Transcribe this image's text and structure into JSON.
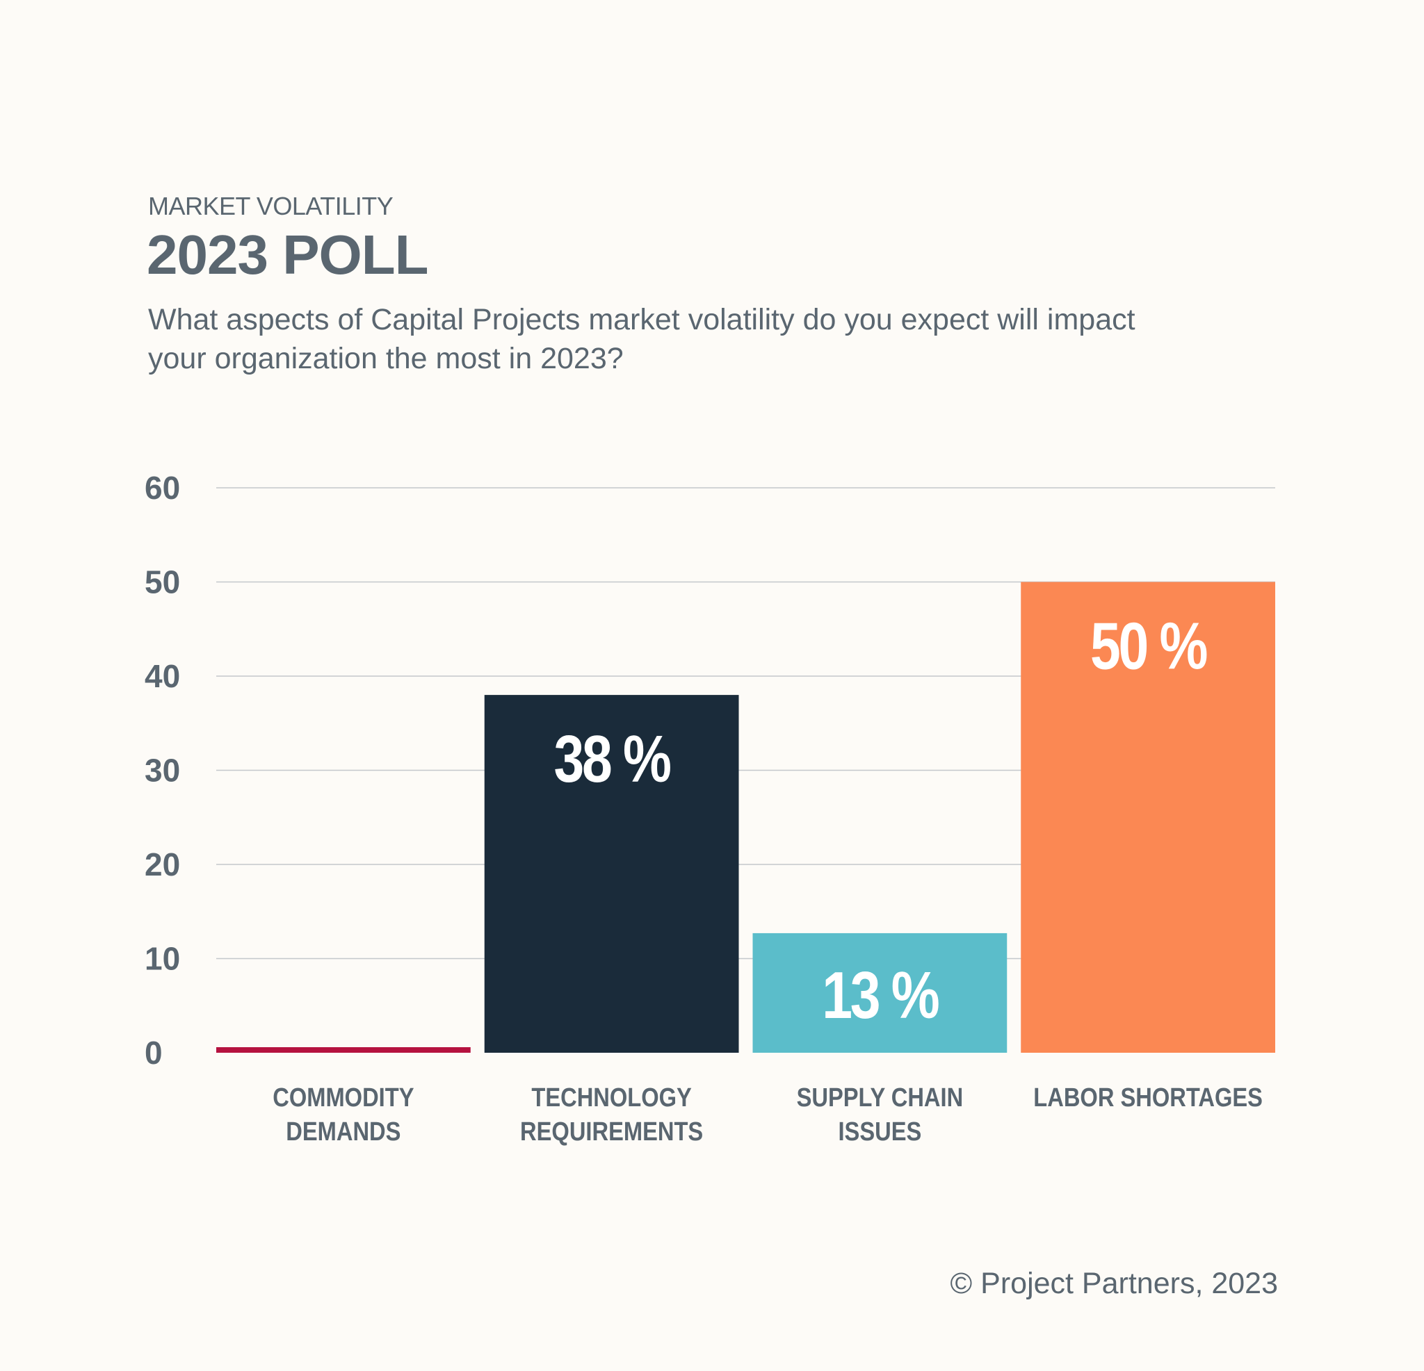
{
  "header": {
    "eyebrow": "MARKET VOLATILITY",
    "title": "2023 POLL",
    "question": "What aspects of Capital Projects market volatility do you expect will impact your organization the most in 2023?"
  },
  "footer": {
    "copyright": "© Project Partners, 2023"
  },
  "chart_data": {
    "type": "bar",
    "title": "2023 POLL",
    "subtitle": "What aspects of Capital Projects market volatility do you expect will impact your organization the most in 2023?",
    "xlabel": "",
    "ylabel": "",
    "ylim": [
      0,
      60
    ],
    "yticks": [
      0,
      10,
      20,
      30,
      40,
      50,
      60
    ],
    "grid": true,
    "categories": [
      [
        "COMMODITY",
        "DEMANDS"
      ],
      [
        "TECHNOLOGY",
        "REQUIREMENTS"
      ],
      [
        "SUPPLY CHAIN",
        "ISSUES"
      ],
      [
        "LABOR SHORTAGES"
      ]
    ],
    "values": [
      0.5,
      38,
      12.7,
      50
    ],
    "data_labels": [
      "",
      "38 %",
      "13 %",
      "50 %"
    ],
    "colors": [
      "#b5123f",
      "#1a2b3a",
      "#5bbdca",
      "#fb8853"
    ]
  }
}
